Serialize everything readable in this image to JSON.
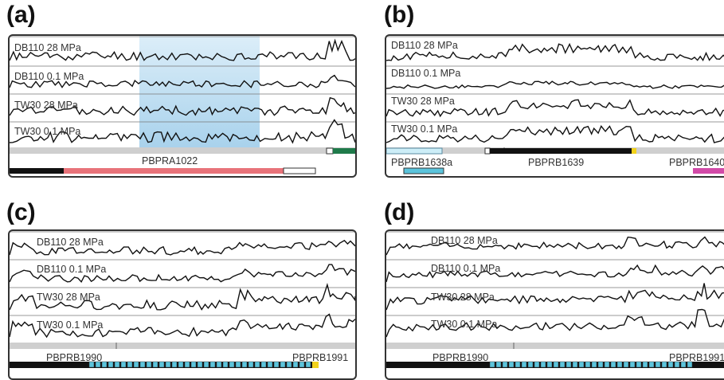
{
  "panels": [
    {
      "letter": "(a)",
      "tracks": [
        "DB110 28 MPa",
        "DB110 0.1 MPa",
        "TW30 28 MPa",
        "TW30 0.1 MPa"
      ],
      "genes": [
        "PBPRA1022"
      ],
      "highlight_color": "#9fcdea"
    },
    {
      "letter": "(b)",
      "tracks": [
        "DB110 28 MPa",
        "DB110 0.1 MPa",
        "TW30 28 MPa",
        "TW30 0.1 MPa"
      ],
      "genes": [
        "PBPRB1638a",
        "PBPRB1639",
        "PBPRB1640"
      ]
    },
    {
      "letter": "(c)",
      "tracks": [
        "DB110 28 MPa",
        "DB110 0.1 MPa",
        "TW30 28 MPa",
        "TW30 0.1 MPa"
      ],
      "genes": [
        "PBPRB1990",
        "PBPRB1991"
      ]
    },
    {
      "letter": "(d)",
      "tracks": [
        "DB110 28 MPa",
        "DB110 0.1 MPa",
        "TW30 28 MPa",
        "TW30 0.1 MPa"
      ],
      "genes": [
        "PBPRB1990",
        "PBPRB1991"
      ]
    }
  ],
  "colors": {
    "gene_red": "#e8737a",
    "gene_green": "#1f7a4a",
    "gene_black": "#111111",
    "gene_cyan": "#5bc4dc",
    "gene_lightblue": "#cdeef8",
    "gene_magenta": "#d24aa8",
    "gene_yellow": "#f2d21b",
    "axis_gray": "#cfcfcf"
  }
}
